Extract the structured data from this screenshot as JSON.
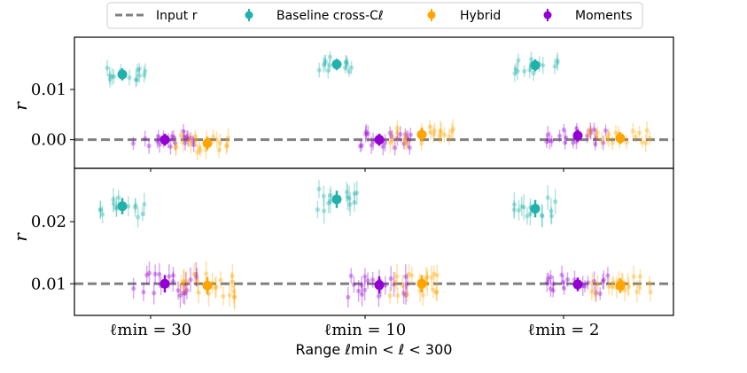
{
  "chart_data": {
    "type": "scatter",
    "title": "",
    "xlabel": "Range ℓmin < ℓ < 300",
    "ylabel": "r",
    "categories": [
      "ℓmin = 30",
      "ℓmin = 10",
      "ℓmin = 2"
    ],
    "colors": {
      "baseline": "#20b2aa",
      "hybrid": "#ffa500",
      "moments": "#9400d3",
      "input": "#808080"
    },
    "legend": {
      "placement": "top-center",
      "entries": [
        {
          "key": "input",
          "label": "Input r"
        },
        {
          "key": "baseline",
          "label": "Baseline cross-Cℓ"
        },
        {
          "key": "hybrid",
          "label": "Hybrid"
        },
        {
          "key": "moments",
          "label": "Moments"
        }
      ]
    },
    "panels": [
      {
        "name": "top",
        "ylabel": "r",
        "ylim": [
          -0.0057,
          0.0204
        ],
        "yticks": [
          0.0,
          0.01
        ],
        "ytick_labels": [
          "0.00",
          "0.01"
        ],
        "input_r": 0.0,
        "groups": [
          {
            "category": "ℓmin = 30",
            "baseline": {
              "mean": 0.013,
              "err": 0.0012
            },
            "moments": {
              "mean": 0.0,
              "err": 0.0012
            },
            "hybrid": {
              "mean": -0.0007,
              "err": 0.0013
            }
          },
          {
            "category": "ℓmin = 10",
            "baseline": {
              "mean": 0.015,
              "err": 0.0011
            },
            "moments": {
              "mean": 0.0,
              "err": 0.0012
            },
            "hybrid": {
              "mean": 0.001,
              "err": 0.0014
            }
          },
          {
            "category": "ℓmin = 2",
            "baseline": {
              "mean": 0.0148,
              "err": 0.0012
            },
            "moments": {
              "mean": 0.0008,
              "err": 0.0012
            },
            "hybrid": {
              "mean": 0.0003,
              "err": 0.0012
            }
          }
        ]
      },
      {
        "name": "bottom",
        "ylabel": "r",
        "ylim": [
          0.0049,
          0.0286
        ],
        "yticks": [
          0.01,
          0.02
        ],
        "ytick_labels": [
          "0.01",
          "0.02"
        ],
        "input_r": 0.01,
        "groups": [
          {
            "category": "ℓmin = 30",
            "baseline": {
              "mean": 0.0225,
              "err": 0.0013
            },
            "moments": {
              "mean": 0.01,
              "err": 0.0014
            },
            "hybrid": {
              "mean": 0.0097,
              "err": 0.0014
            }
          },
          {
            "category": "ℓmin = 10",
            "baseline": {
              "mean": 0.0236,
              "err": 0.0014
            },
            "moments": {
              "mean": 0.0098,
              "err": 0.0014
            },
            "hybrid": {
              "mean": 0.01,
              "err": 0.0014
            }
          },
          {
            "category": "ℓmin = 2",
            "baseline": {
              "mean": 0.0221,
              "err": 0.0014
            },
            "moments": {
              "mean": 0.0099,
              "err": 0.0011
            },
            "hybrid": {
              "mean": 0.0097,
              "err": 0.0012
            }
          }
        ]
      }
    ]
  }
}
